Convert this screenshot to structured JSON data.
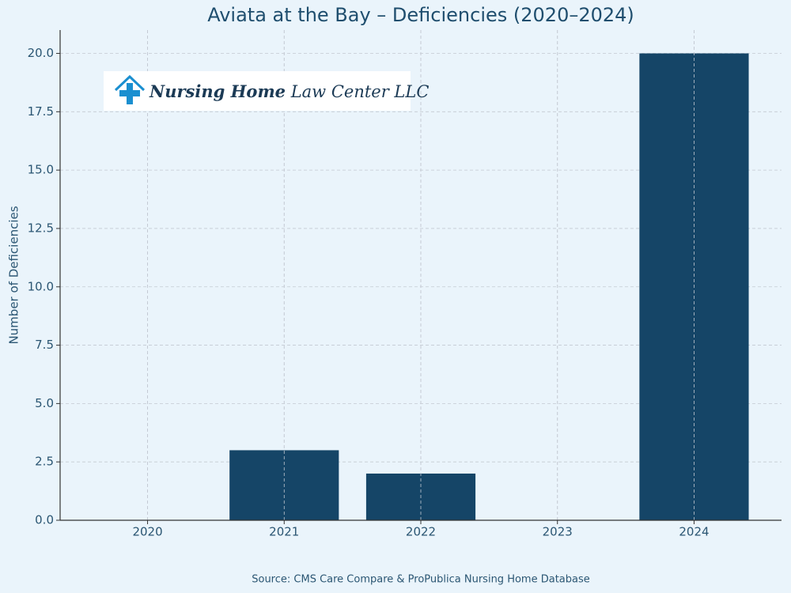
{
  "chart_data": {
    "type": "bar",
    "title": "Aviata at the Bay – Deficiencies (2020–2024)",
    "ylabel": "Number of Deficiencies",
    "source": "Source: CMS Care Compare & ProPublica Nursing Home Database",
    "categories": [
      "2020",
      "2021",
      "2022",
      "2023",
      "2024"
    ],
    "values": [
      0,
      3,
      2,
      0,
      20
    ],
    "color": "#154567",
    "ylim": [
      0,
      21
    ],
    "yticks": [
      {
        "value": 0,
        "label": "0.0"
      },
      2.5,
      {
        "value": 5,
        "label": "5.0"
      },
      7.5,
      {
        "value": 10,
        "label": "10.0"
      },
      12.5,
      {
        "value": 15,
        "label": "15.0"
      },
      17.5,
      {
        "value": 20,
        "label": "20.0"
      }
    ],
    "grid": true
  },
  "logo": {
    "bold": "Nursing Home",
    "regular": "Law Center LLC"
  }
}
